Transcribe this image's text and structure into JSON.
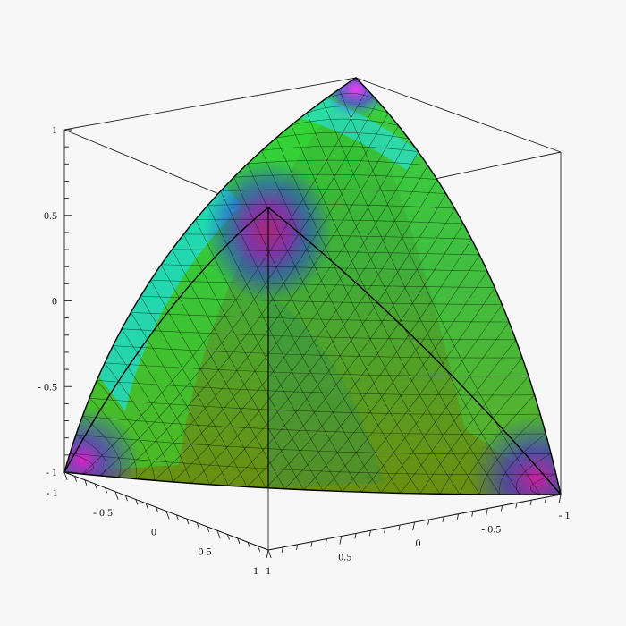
{
  "chart_data": {
    "type": "surface3d",
    "title": "",
    "surface": {
      "shape": "spherical triangle (one octant of unit sphere) with vertices at (1,0,0), (0,1,0), (0,0,1) shown relative to cube [-1,1]^3",
      "colormap": [
        "#ff00ff",
        "#3333ff",
        "#00ffff",
        "#33ff33",
        "#2aa52a",
        "#6b8f00"
      ],
      "mesh_lines": true
    },
    "axes": {
      "vertical": {
        "label": "",
        "range": [
          -1,
          1
        ],
        "ticks": [
          "1",
          "0.5",
          "0",
          "- 0.5",
          "- 1"
        ]
      },
      "left_base": {
        "label": "",
        "range": [
          -1,
          1
        ],
        "ticks": [
          "- 1",
          "- 0.5",
          "0",
          "0.5",
          "1"
        ]
      },
      "right_base": {
        "label": "",
        "range": [
          -1,
          1
        ],
        "ticks": [
          "1",
          "0.5",
          "0",
          "- 0.5",
          "- 1"
        ]
      }
    },
    "grid": false,
    "legend": "none"
  }
}
